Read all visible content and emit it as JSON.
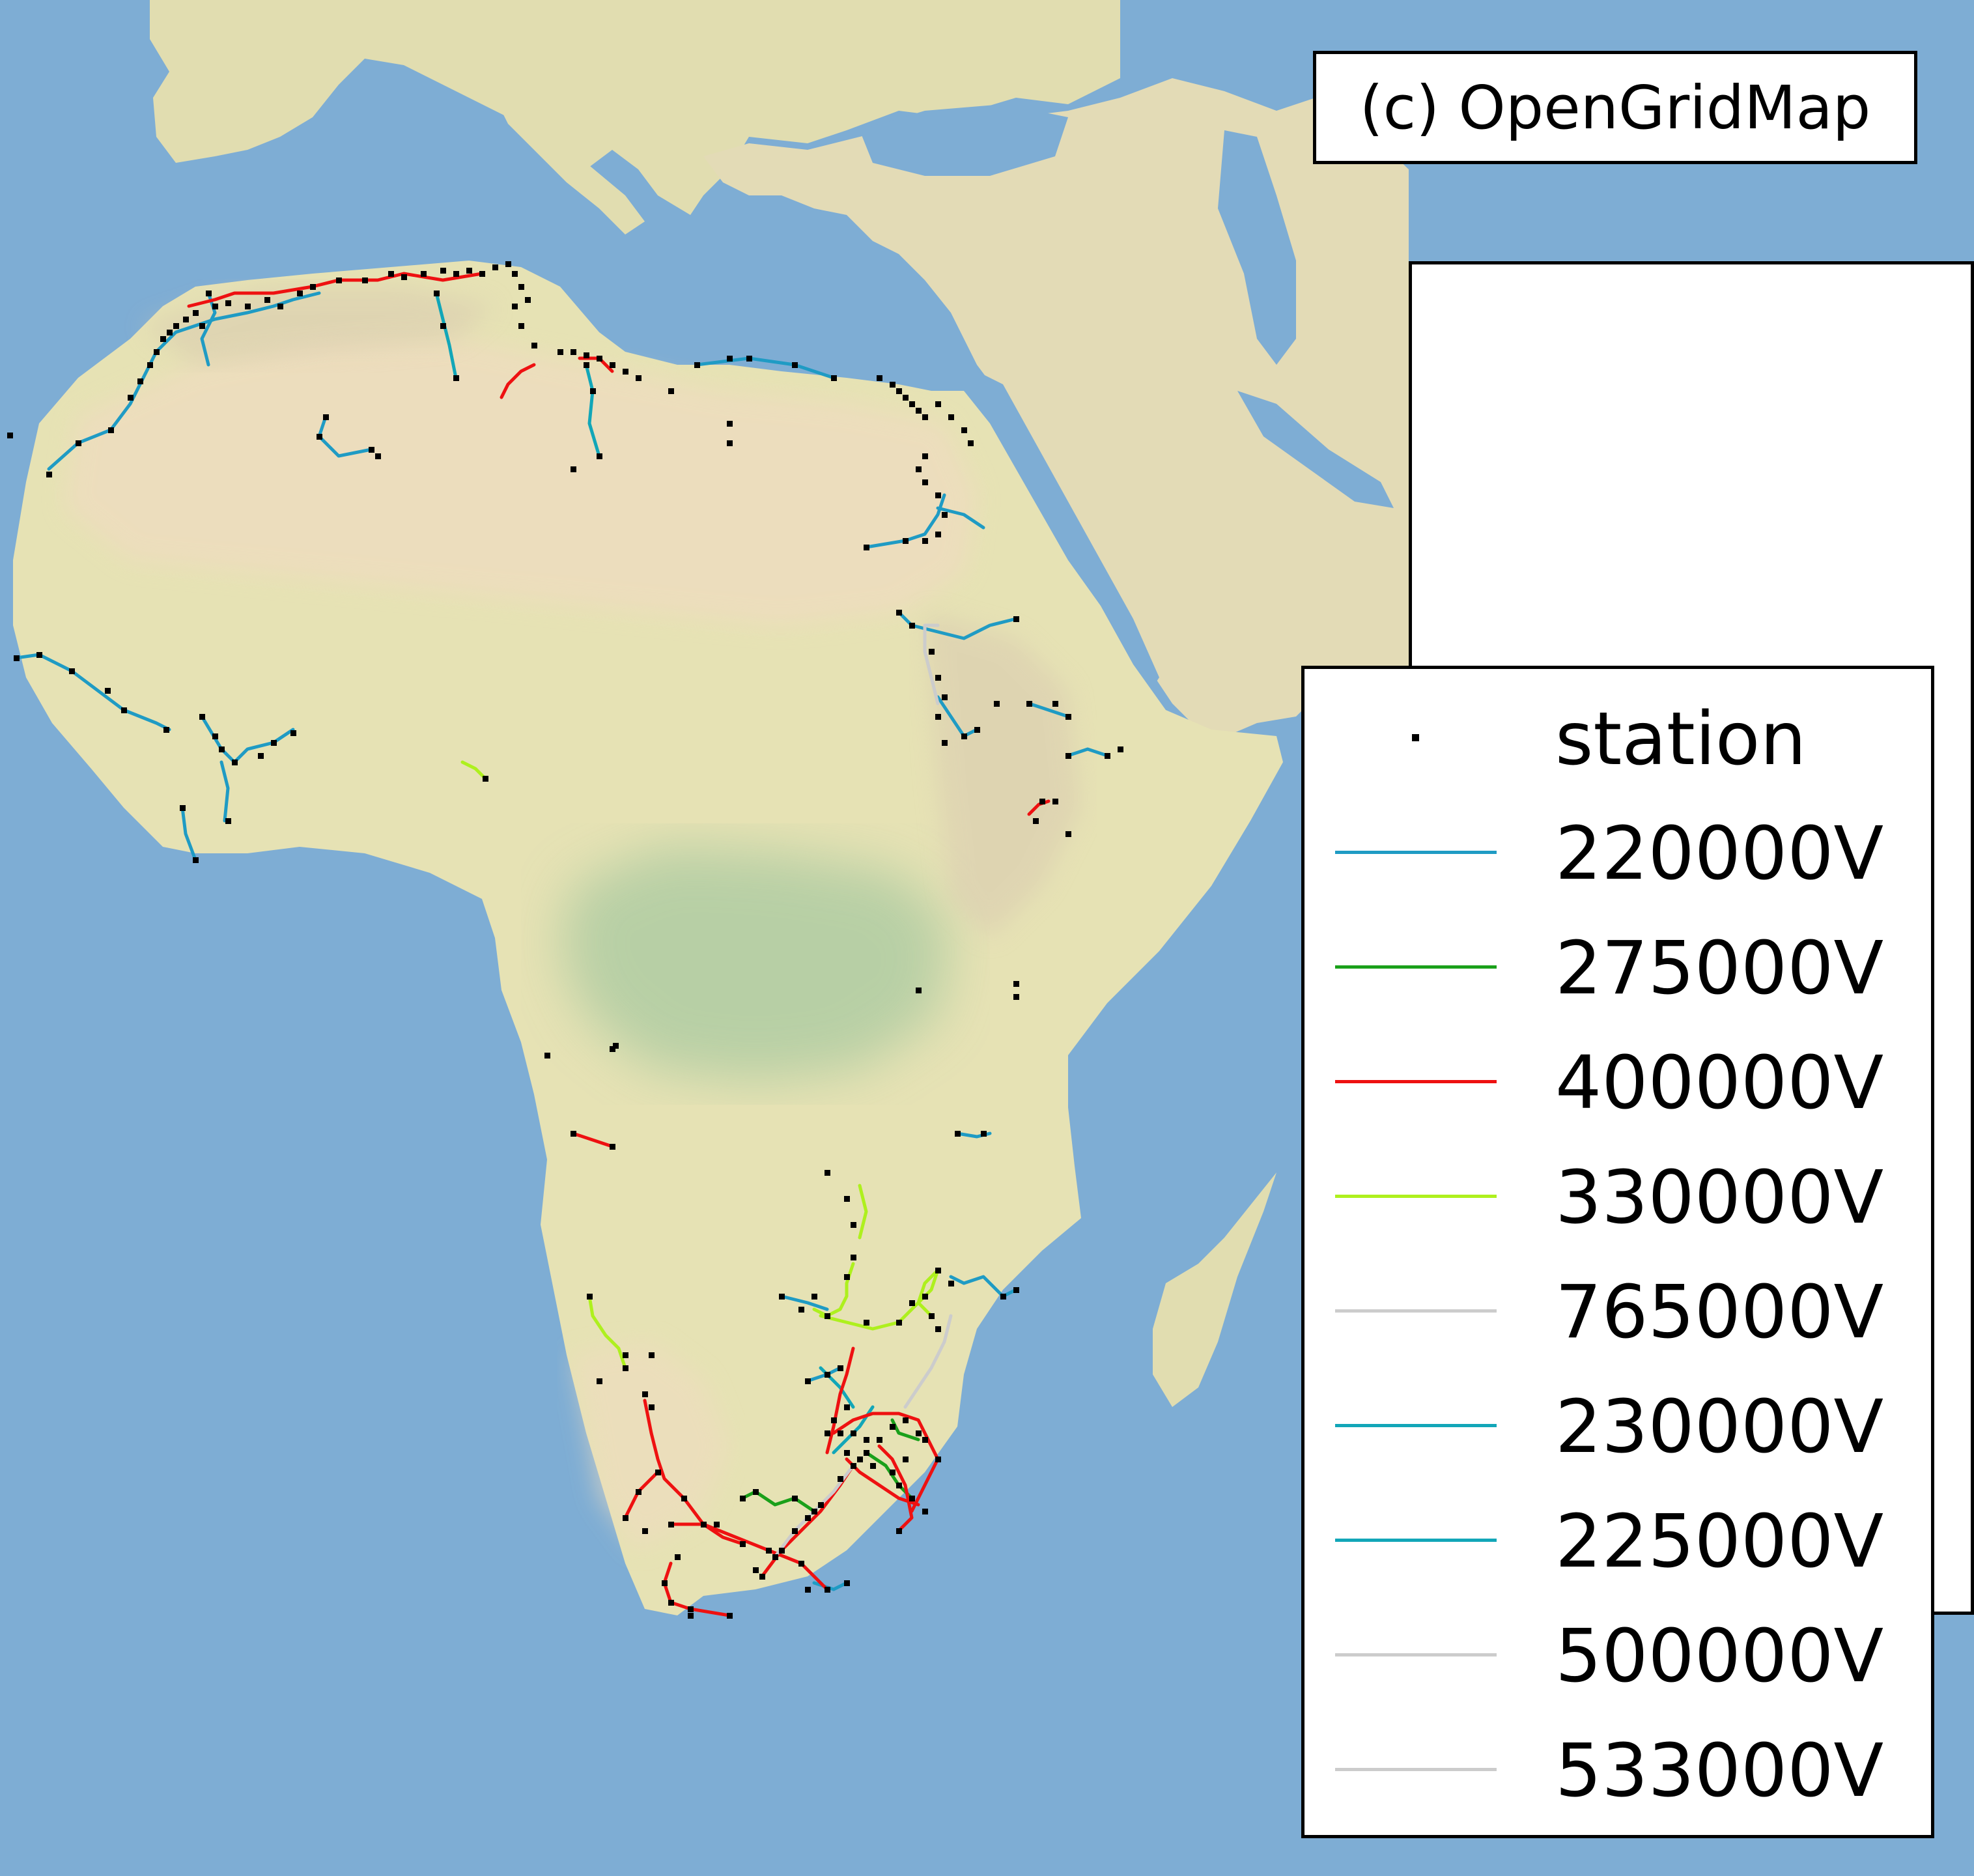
{
  "map": {
    "credit": "(c) OpenGridMap",
    "colors": {
      "ocean": "#7eadd4",
      "land": "#e6e2b4",
      "desert": "#efdcc0",
      "forest": "#a8c9a0",
      "mountain": "#d8c8b0",
      "station": "#000000"
    }
  },
  "legend": {
    "items": [
      {
        "label": "station",
        "kind": "marker",
        "color": "#000000"
      },
      {
        "label": "220000V",
        "kind": "line",
        "color": "#1f9bc4"
      },
      {
        "label": "275000V",
        "kind": "line",
        "color": "#1aa01a"
      },
      {
        "label": "400000V",
        "kind": "line",
        "color": "#ee1111"
      },
      {
        "label": "330000V",
        "kind": "line",
        "color": "#aef01e"
      },
      {
        "label": "765000V",
        "kind": "line",
        "color": "#cccccc"
      },
      {
        "label": "230000V",
        "kind": "line",
        "color": "#12a6b8"
      },
      {
        "label": "225000V",
        "kind": "line",
        "color": "#12a6b8"
      },
      {
        "label": "500000V",
        "kind": "line",
        "color": "#cccccc"
      },
      {
        "label": "533000V",
        "kind": "line",
        "color": "#cccccc"
      }
    ]
  }
}
